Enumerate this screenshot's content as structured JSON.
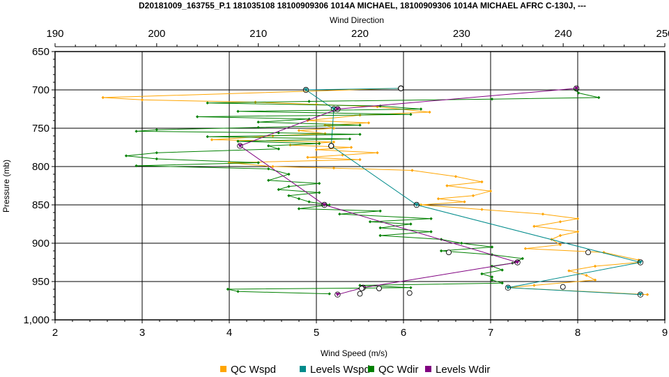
{
  "chart_data": {
    "type": "line",
    "title": "D20181009_163755_P.1 181035108 18100909306 1014A MICHAEL, 18100909306 1014A MICHAEL AFRC C-130J, ---",
    "xlabel": "Wind Speed (m/s)",
    "x2label": "Wind Direction",
    "ylabel": "Pressure (mb)",
    "xlim": [
      2,
      9
    ],
    "x2lim": [
      190,
      250
    ],
    "ylim": [
      650,
      1000
    ],
    "y_inverted": true,
    "grid": true,
    "legend_position": "bottom",
    "xticks": [
      "2",
      "3",
      "4",
      "5",
      "6",
      "7",
      "8",
      "9"
    ],
    "x2ticks": [
      "190",
      "200",
      "210",
      "220",
      "230",
      "240",
      "250"
    ],
    "yticks": [
      "650",
      "700",
      "750",
      "800",
      "850",
      "900",
      "950",
      "1,000"
    ],
    "series": [
      {
        "name": "QC Wspd",
        "color": "#FFA500",
        "axis": "speed",
        "marker": "diamond",
        "points": [
          [
            5.95,
            698
          ],
          [
            2.55,
            710
          ],
          [
            3.0,
            713
          ],
          [
            4.3,
            716
          ],
          [
            5.0,
            719
          ],
          [
            5.7,
            722
          ],
          [
            6.3,
            729
          ],
          [
            5.5,
            733
          ],
          [
            4.9,
            740
          ],
          [
            5.6,
            743
          ],
          [
            5.1,
            746
          ],
          [
            5.2,
            750
          ],
          [
            4.8,
            753
          ],
          [
            5.1,
            757
          ],
          [
            4.5,
            760
          ],
          [
            3.8,
            765
          ],
          [
            5.2,
            768
          ],
          [
            4.7,
            772
          ],
          [
            5.4,
            775
          ],
          [
            5.0,
            778
          ],
          [
            5.7,
            782
          ],
          [
            5.3,
            785
          ],
          [
            4.9,
            788
          ],
          [
            5.5,
            791
          ],
          [
            4.0,
            795
          ],
          [
            4.5,
            800
          ],
          [
            5.2,
            802
          ],
          [
            6.1,
            805
          ],
          [
            6.6,
            813
          ],
          [
            6.9,
            820
          ],
          [
            6.5,
            825
          ],
          [
            7.0,
            832
          ],
          [
            6.8,
            838
          ],
          [
            6.4,
            842
          ],
          [
            6.7,
            846
          ],
          [
            6.2,
            850
          ],
          [
            6.9,
            856
          ],
          [
            7.6,
            862
          ],
          [
            8.0,
            868
          ],
          [
            7.8,
            872
          ],
          [
            7.5,
            878
          ],
          [
            8.0,
            885
          ],
          [
            7.8,
            890
          ],
          [
            7.7,
            895
          ],
          [
            7.8,
            902
          ],
          [
            7.4,
            907
          ],
          [
            8.3,
            912
          ],
          [
            8.7,
            922
          ],
          [
            8.7,
            925
          ],
          [
            8.2,
            930
          ],
          [
            7.9,
            936
          ],
          [
            8.1,
            942
          ],
          [
            8.2,
            948
          ],
          [
            7.5,
            955
          ],
          [
            7.2,
            958
          ],
          [
            8.8,
            967
          ]
        ]
      },
      {
        "name": "Levels Wspd",
        "color": "#008B8B",
        "axis": "speed",
        "marker": "triangle",
        "points": [
          [
            5.97,
            698
          ],
          [
            4.88,
            700
          ],
          [
            5.2,
            725
          ],
          [
            5.17,
            773
          ],
          [
            6.15,
            850
          ],
          [
            8.72,
            925
          ],
          [
            7.2,
            958
          ],
          [
            8.72,
            967
          ]
        ]
      },
      {
        "name": "QC Wdir",
        "color": "#008000",
        "axis": "direction",
        "marker": "diamond",
        "points": [
          [
            241.2,
            700
          ],
          [
            241.5,
            704
          ],
          [
            243.5,
            710
          ],
          [
            233,
            712
          ],
          [
            215,
            715
          ],
          [
            205,
            717
          ],
          [
            222,
            721
          ],
          [
            226,
            725
          ],
          [
            208,
            728
          ],
          [
            225,
            732
          ],
          [
            204,
            735
          ],
          [
            215,
            738
          ],
          [
            210,
            742
          ],
          [
            220,
            746
          ],
          [
            210,
            749
          ],
          [
            200,
            752
          ],
          [
            198,
            754
          ],
          [
            212,
            756
          ],
          [
            220,
            758
          ],
          [
            205,
            761
          ],
          [
            219,
            764
          ],
          [
            208,
            767
          ],
          [
            216,
            770
          ],
          [
            211,
            773
          ],
          [
            212,
            777
          ],
          [
            200,
            782
          ],
          [
            197,
            786
          ],
          [
            200,
            790
          ],
          [
            210,
            795
          ],
          [
            198,
            799
          ],
          [
            211,
            803
          ],
          [
            213,
            810
          ],
          [
            211,
            818
          ],
          [
            216,
            822
          ],
          [
            213,
            826
          ],
          [
            212,
            830
          ],
          [
            216,
            834
          ],
          [
            213,
            838
          ],
          [
            214,
            842
          ],
          [
            215,
            846
          ],
          [
            217,
            850
          ],
          [
            214,
            855
          ],
          [
            222,
            858
          ],
          [
            218,
            862
          ],
          [
            227,
            868
          ],
          [
            221,
            872
          ],
          [
            225,
            875
          ],
          [
            222,
            880
          ],
          [
            227,
            885
          ],
          [
            222,
            890
          ],
          [
            228,
            895
          ],
          [
            230,
            900
          ],
          [
            233,
            905
          ],
          [
            228,
            910
          ],
          [
            233,
            915
          ],
          [
            236,
            920
          ],
          [
            235,
            926
          ],
          [
            233,
            930
          ],
          [
            234,
            935
          ],
          [
            232,
            940
          ],
          [
            233,
            944
          ],
          [
            233,
            948
          ],
          [
            234,
            952
          ],
          [
            220,
            955
          ],
          [
            225,
            958
          ],
          [
            207,
            960
          ],
          [
            208,
            963
          ],
          [
            217,
            966
          ]
        ]
      },
      {
        "name": "Levels Wdir",
        "color": "#800080",
        "axis": "direction",
        "marker": "triangle",
        "points": [
          [
            241.3,
            698
          ],
          [
            217.8,
            725
          ],
          [
            208.2,
            773
          ],
          [
            216.5,
            850
          ],
          [
            235.5,
            925
          ],
          [
            220.3,
            958
          ],
          [
            217.8,
            967
          ]
        ]
      }
    ],
    "open_circle_markers": [
      [
        5.97,
        698
      ],
      [
        5.17,
        773
      ],
      [
        6.52,
        912
      ],
      [
        8.12,
        912
      ],
      [
        7.83,
        957
      ],
      [
        5.52,
        959
      ],
      [
        5.72,
        959
      ],
      [
        6.07,
        965
      ],
      [
        5.5,
        966
      ]
    ]
  }
}
